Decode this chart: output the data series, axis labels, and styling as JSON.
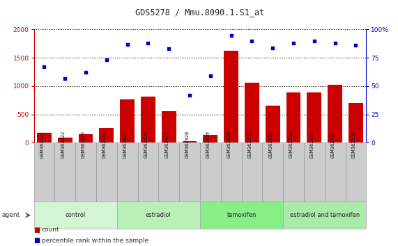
{
  "title": "GDS5278 / Mmu.8090.1.S1_at",
  "samples": [
    "GSM362921",
    "GSM362922",
    "GSM362923",
    "GSM362924",
    "GSM362925",
    "GSM362926",
    "GSM362927",
    "GSM362928",
    "GSM362929",
    "GSM362930",
    "GSM362931",
    "GSM362932",
    "GSM362933",
    "GSM362934",
    "GSM362935",
    "GSM362936"
  ],
  "counts": [
    170,
    90,
    155,
    260,
    760,
    820,
    560,
    30,
    140,
    1620,
    1060,
    650,
    890,
    890,
    1020,
    700
  ],
  "percentile": [
    67,
    57,
    62,
    73,
    87,
    88,
    83,
    42,
    59,
    95,
    90,
    84,
    88,
    90,
    88,
    86
  ],
  "groups": [
    {
      "label": "control",
      "start": 0,
      "end": 4
    },
    {
      "label": "estradiol",
      "start": 4,
      "end": 8
    },
    {
      "label": "tamoxifen",
      "start": 8,
      "end": 12
    },
    {
      "label": "estradiol and tamoxifen",
      "start": 12,
      "end": 16
    }
  ],
  "group_colors": [
    "#d4f5d4",
    "#b8f0b8",
    "#88ee88",
    "#aaeaaa"
  ],
  "ylim_left": [
    0,
    2000
  ],
  "ylim_right": [
    0,
    100
  ],
  "yticks_left": [
    0,
    500,
    1000,
    1500,
    2000
  ],
  "yticks_right": [
    0,
    25,
    50,
    75,
    100
  ],
  "bar_color": "#cc0000",
  "dot_color": "#0000cc",
  "left_axis_color": "#cc0000",
  "right_axis_color": "#0000cc",
  "grid_color": "#000000",
  "sample_box_color": "#cccccc",
  "sample_box_edge": "#999999"
}
